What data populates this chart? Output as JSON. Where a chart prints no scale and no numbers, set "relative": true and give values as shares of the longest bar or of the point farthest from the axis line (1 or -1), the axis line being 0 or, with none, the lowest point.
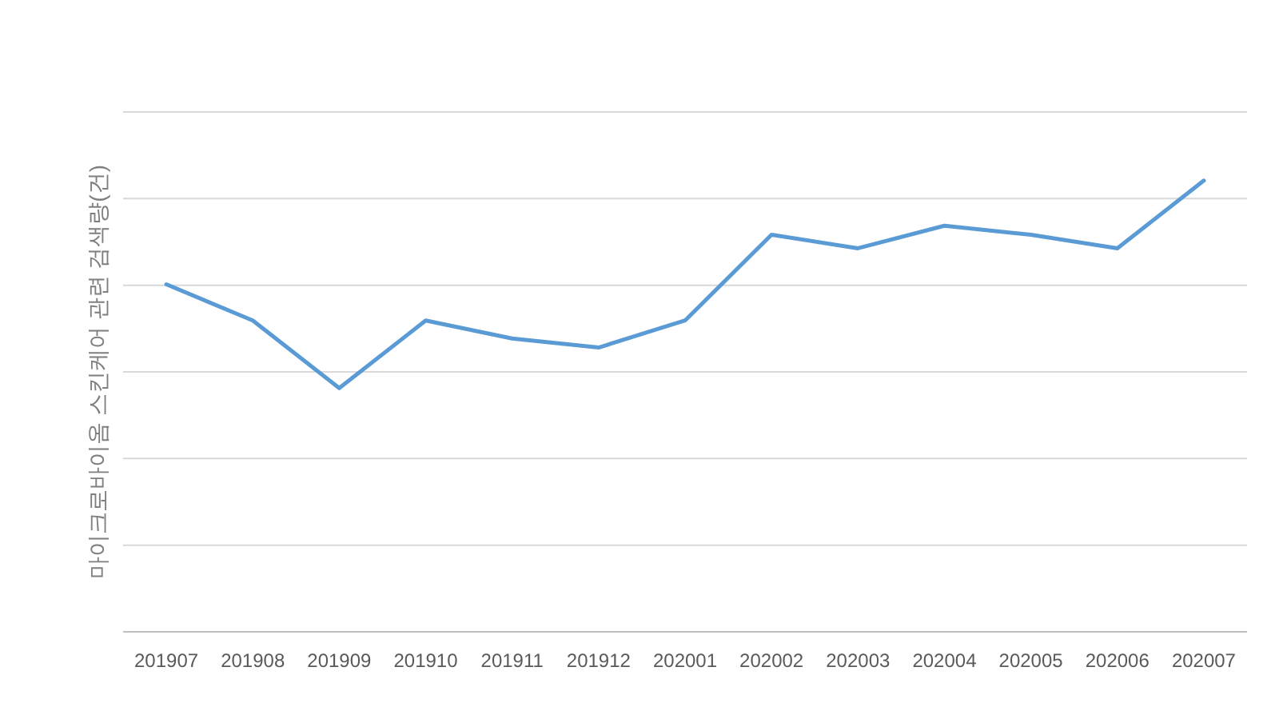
{
  "chart_data": {
    "type": "line",
    "relative": true,
    "ylabel": "마이크로바이옴 스킨케어 관련 검색량(건)",
    "categories": [
      "201907",
      "201908",
      "201909",
      "201910",
      "201911",
      "201912",
      "202001",
      "202002",
      "202003",
      "202004",
      "202005",
      "202006",
      "202007"
    ],
    "series": [
      {
        "color": "#5b9bd5",
        "values": [
          0.77,
          0.69,
          0.54,
          0.69,
          0.65,
          0.63,
          0.69,
          0.88,
          0.85,
          0.9,
          0.88,
          0.85,
          1.0
        ]
      }
    ],
    "grid": "y",
    "marker": "none",
    "line_style": "solid"
  }
}
